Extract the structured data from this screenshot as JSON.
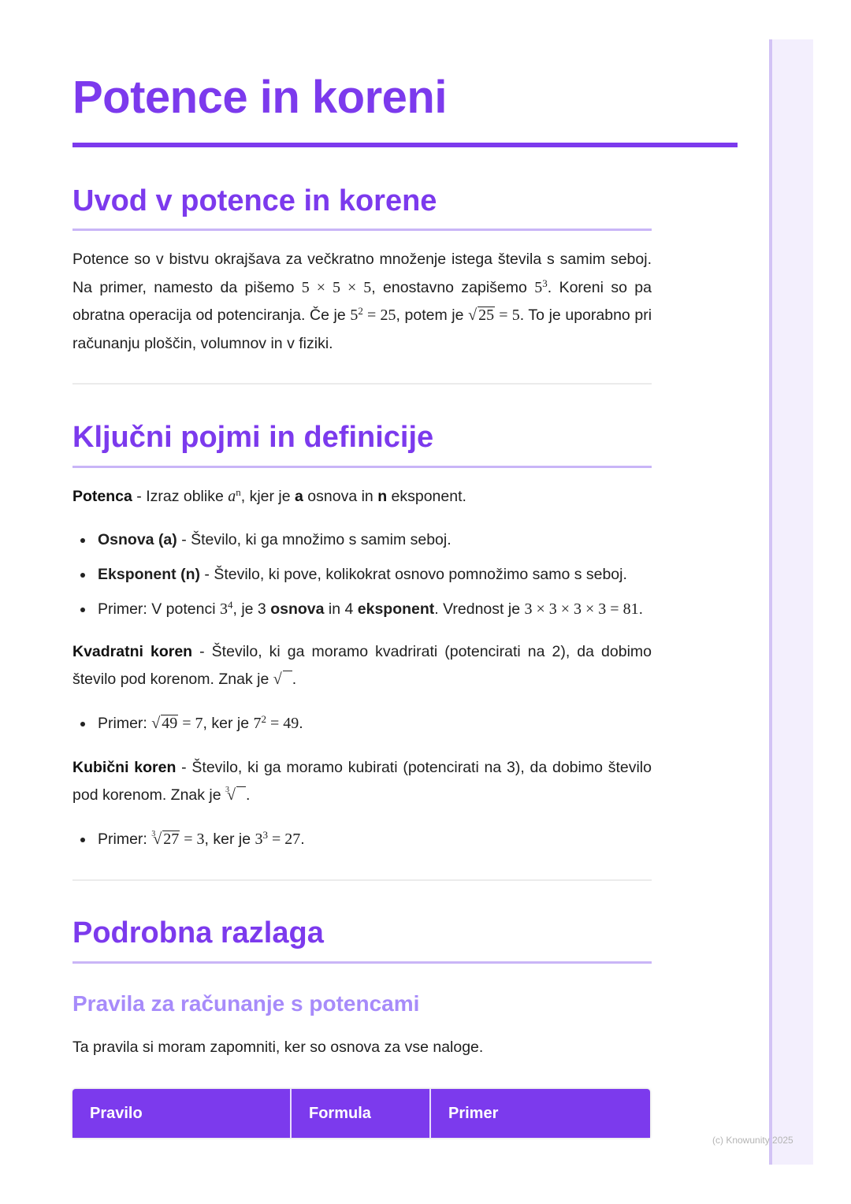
{
  "title": "Potence in koreni",
  "sections": {
    "intro": {
      "heading": "Uvod v potence in korene",
      "paragraph": [
        {
          "t": "Potence so v bistvu okrajšava za večkratno množenje istega števila s samim seboj. Na primer, namesto da pišemo "
        },
        {
          "m": "5 × 5 × 5"
        },
        {
          "t": ", enostavno zapišemo "
        },
        {
          "m": "5",
          "sup": "3"
        },
        {
          "t": ". Koreni so pa obratna operacija od potenciranja. Če je "
        },
        {
          "m": "5",
          "sup": "2"
        },
        {
          "m": " = 25"
        },
        {
          "t": ", potem je "
        },
        {
          "sqrt": "25"
        },
        {
          "m": " = 5"
        },
        {
          "t": ". To je uporabno pri računanju ploščin, volumnov in v fiziki."
        }
      ]
    },
    "definitions": {
      "heading": "Ključni pojmi in definicije",
      "potenca": [
        {
          "b": "Potenca"
        },
        {
          "t": " - Izraz oblike "
        },
        {
          "m": "a",
          "sup": "n",
          "italic": true
        },
        {
          "t": ", kjer je "
        },
        {
          "b": "a"
        },
        {
          "t": " osnova in "
        },
        {
          "b": "n"
        },
        {
          "t": " eksponent."
        }
      ],
      "potenca_bullets": [
        [
          {
            "b": "Osnova (a)"
          },
          {
            "t": " - Število, ki ga množimo s samim seboj."
          }
        ],
        [
          {
            "b": "Eksponent (n)"
          },
          {
            "t": " - Število, ki pove, kolikokrat osnovo pomnožimo samo s seboj."
          }
        ],
        [
          {
            "t": "Primer: V potenci "
          },
          {
            "m": "3",
            "sup": "4"
          },
          {
            "t": ", je 3 "
          },
          {
            "b": "osnova"
          },
          {
            "t": " in 4 "
          },
          {
            "b": "eksponent"
          },
          {
            "t": ". Vrednost je "
          },
          {
            "m": "3 × 3 × 3 × 3 = 81"
          },
          {
            "t": "."
          }
        ]
      ],
      "kvadratni": [
        {
          "b": "Kvadratni koren"
        },
        {
          "t": " - Število, ki ga moramo kvadrirati (potencirati na 2), da dobimo število pod korenom. Znak je "
        },
        {
          "sqrt": " "
        },
        {
          "t": "."
        }
      ],
      "kvadratni_bullets": [
        [
          {
            "t": "Primer: "
          },
          {
            "sqrt": "49"
          },
          {
            "m": " = 7"
          },
          {
            "t": ", ker je "
          },
          {
            "m": "7",
            "sup": "2"
          },
          {
            "m": " = 49"
          },
          {
            "t": "."
          }
        ]
      ],
      "kubicni": [
        {
          "b": "Kubični koren"
        },
        {
          "t": " - Število, ki ga moramo kubirati (potencirati na 3), da dobimo število pod korenom. Znak je "
        },
        {
          "sqrt": " ",
          "index": "3"
        },
        {
          "t": "."
        }
      ],
      "kubicni_bullets": [
        [
          {
            "t": "Primer: "
          },
          {
            "sqrt": "27",
            "index": "3"
          },
          {
            "m": " = 3"
          },
          {
            "t": ", ker je "
          },
          {
            "m": "3",
            "sup": "3"
          },
          {
            "m": " = 27"
          },
          {
            "t": "."
          }
        ]
      ]
    },
    "detail": {
      "heading": "Podrobna razlaga",
      "subheading": "Pravila za računanje s potencami",
      "intro": "Ta pravila si moram zapomniti, ker so osnova za vse naloge.",
      "table_headers": [
        "Pravilo",
        "Formula",
        "Primer"
      ]
    }
  },
  "footer": "(c) Knowunity 2025",
  "colors": {
    "accent": "#7c3aed",
    "subheading": "#a78bfa",
    "rule": "#c9b5f7",
    "sidebar": "#f3effd"
  }
}
